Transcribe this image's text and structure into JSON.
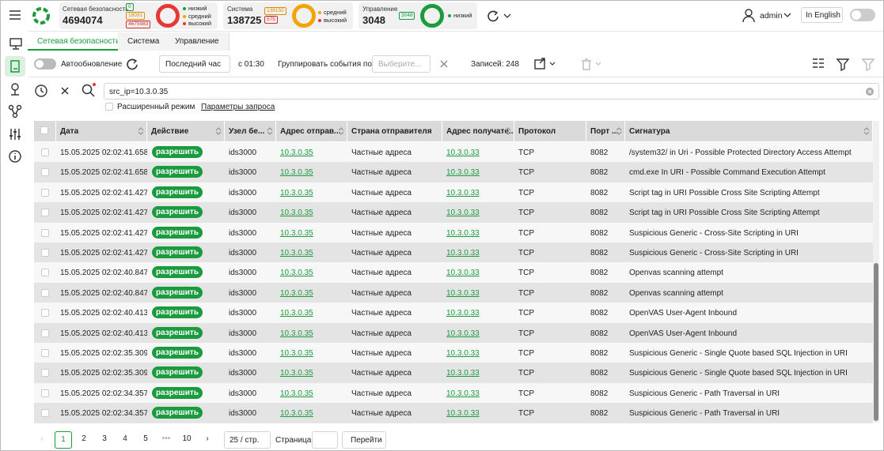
{
  "header": {
    "cards": [
      {
        "title": "Сетевая безопасность",
        "total": "4694074",
        "counts": [
          "0",
          "18091",
          "4675983"
        ],
        "legend": [
          "низкий",
          "средний",
          "высокий"
        ]
      },
      {
        "title": "Система",
        "total": "138725",
        "counts": [
          "138150",
          "575"
        ],
        "legend": [
          "средний",
          "высокий"
        ]
      },
      {
        "title": "Управление",
        "total": "3048",
        "counts": [
          "3048"
        ],
        "legend": [
          "низкий"
        ]
      }
    ],
    "user": "admin",
    "language": "In English"
  },
  "tabs": [
    "Сетевая безопасность",
    "Система",
    "Управление"
  ],
  "toolbar": {
    "autoupdate": "Автообновление",
    "period": "Последний час",
    "since": "с 01:30",
    "group_by": "Группировать события по",
    "group_placeholder": "Выберите...",
    "records": "Записей: 248"
  },
  "search": {
    "query": "src_ip=10.3.0.35",
    "advanced": "Расширенный режим",
    "params": "Параметры запроса"
  },
  "table": {
    "columns": [
      "Дата",
      "Действие",
      "Узел бе...",
      "Адрес отправ...",
      "Страна отправителя",
      "Адрес получате...",
      "Протокол",
      "Порт ...",
      "Сигнатура"
    ],
    "rows": [
      [
        "15.05.2025 02:02:41.658",
        "разрешить",
        "ids3000",
        "10.3.0.35",
        "Частные адреса",
        "10.3.0.33",
        "TCP",
        "8082",
        "/system32/ in Uri - Possible Protected Directory Access Attempt"
      ],
      [
        "15.05.2025 02:02:41.658",
        "разрешить",
        "ids3000",
        "10.3.0.35",
        "Частные адреса",
        "10.3.0.33",
        "TCP",
        "8082",
        "cmd.exe In URI - Possible Command Execution Attempt"
      ],
      [
        "15.05.2025 02:02:41.427",
        "разрешить",
        "ids3000",
        "10.3.0.35",
        "Частные адреса",
        "10.3.0.33",
        "TCP",
        "8082",
        "Script tag in URI Possible Cross Site Scripting Attempt"
      ],
      [
        "15.05.2025 02:02:41.427",
        "разрешить",
        "ids3000",
        "10.3.0.35",
        "Частные адреса",
        "10.3.0.33",
        "TCP",
        "8082",
        "Script tag in URI Possible Cross Site Scripting Attempt"
      ],
      [
        "15.05.2025 02:02:41.427",
        "разрешить",
        "ids3000",
        "10.3.0.35",
        "Частные адреса",
        "10.3.0.33",
        "TCP",
        "8082",
        "Suspicious Generic - Cross-Site Scripting in URI"
      ],
      [
        "15.05.2025 02:02:41.427",
        "разрешить",
        "ids3000",
        "10.3.0.35",
        "Частные адреса",
        "10.3.0.33",
        "TCP",
        "8082",
        "Suspicious Generic - Cross-Site Scripting in URI"
      ],
      [
        "15.05.2025 02:02:40.847",
        "разрешить",
        "ids3000",
        "10.3.0.35",
        "Частные адреса",
        "10.3.0.33",
        "TCP",
        "8082",
        "Openvas scanning attempt"
      ],
      [
        "15.05.2025 02:02:40.847",
        "разрешить",
        "ids3000",
        "10.3.0.35",
        "Частные адреса",
        "10.3.0.33",
        "TCP",
        "8082",
        "Openvas scanning attempt"
      ],
      [
        "15.05.2025 02:02:40.413",
        "разрешить",
        "ids3000",
        "10.3.0.35",
        "Частные адреса",
        "10.3.0.33",
        "TCP",
        "8082",
        "OpenVAS User-Agent Inbound"
      ],
      [
        "15.05.2025 02:02:40.413",
        "разрешить",
        "ids3000",
        "10.3.0.35",
        "Частные адреса",
        "10.3.0.33",
        "TCP",
        "8082",
        "OpenVAS User-Agent Inbound"
      ],
      [
        "15.05.2025 02:02:35.309",
        "разрешить",
        "ids3000",
        "10.3.0.35",
        "Частные адреса",
        "10.3.0.33",
        "TCP",
        "8082",
        "Suspicious Generic - Single Quote based SQL Injection in URI"
      ],
      [
        "15.05.2025 02:02:35.309",
        "разрешить",
        "ids3000",
        "10.3.0.35",
        "Частные адреса",
        "10.3.0.33",
        "TCP",
        "8082",
        "Suspicious Generic - Single Quote based SQL Injection in URI"
      ],
      [
        "15.05.2025 02:02:34.357",
        "разрешить",
        "ids3000",
        "10.3.0.35",
        "Частные адреса",
        "10.3.0.33",
        "TCP",
        "8082",
        "Suspicious Generic - Path Traversal in URI"
      ],
      [
        "15.05.2025 02:02:34.357",
        "разрешить",
        "ids3000",
        "10.3.0.35",
        "Частные адреса",
        "10.3.0.33",
        "TCP",
        "8082",
        "Suspicious Generic - Path Traversal in URI"
      ]
    ]
  },
  "pagination": {
    "pages": [
      "1",
      "2",
      "3",
      "4",
      "5",
      "•••",
      "10"
    ],
    "page_size": "25 / стр.",
    "page_label": "Страница",
    "go": "Перейти"
  }
}
